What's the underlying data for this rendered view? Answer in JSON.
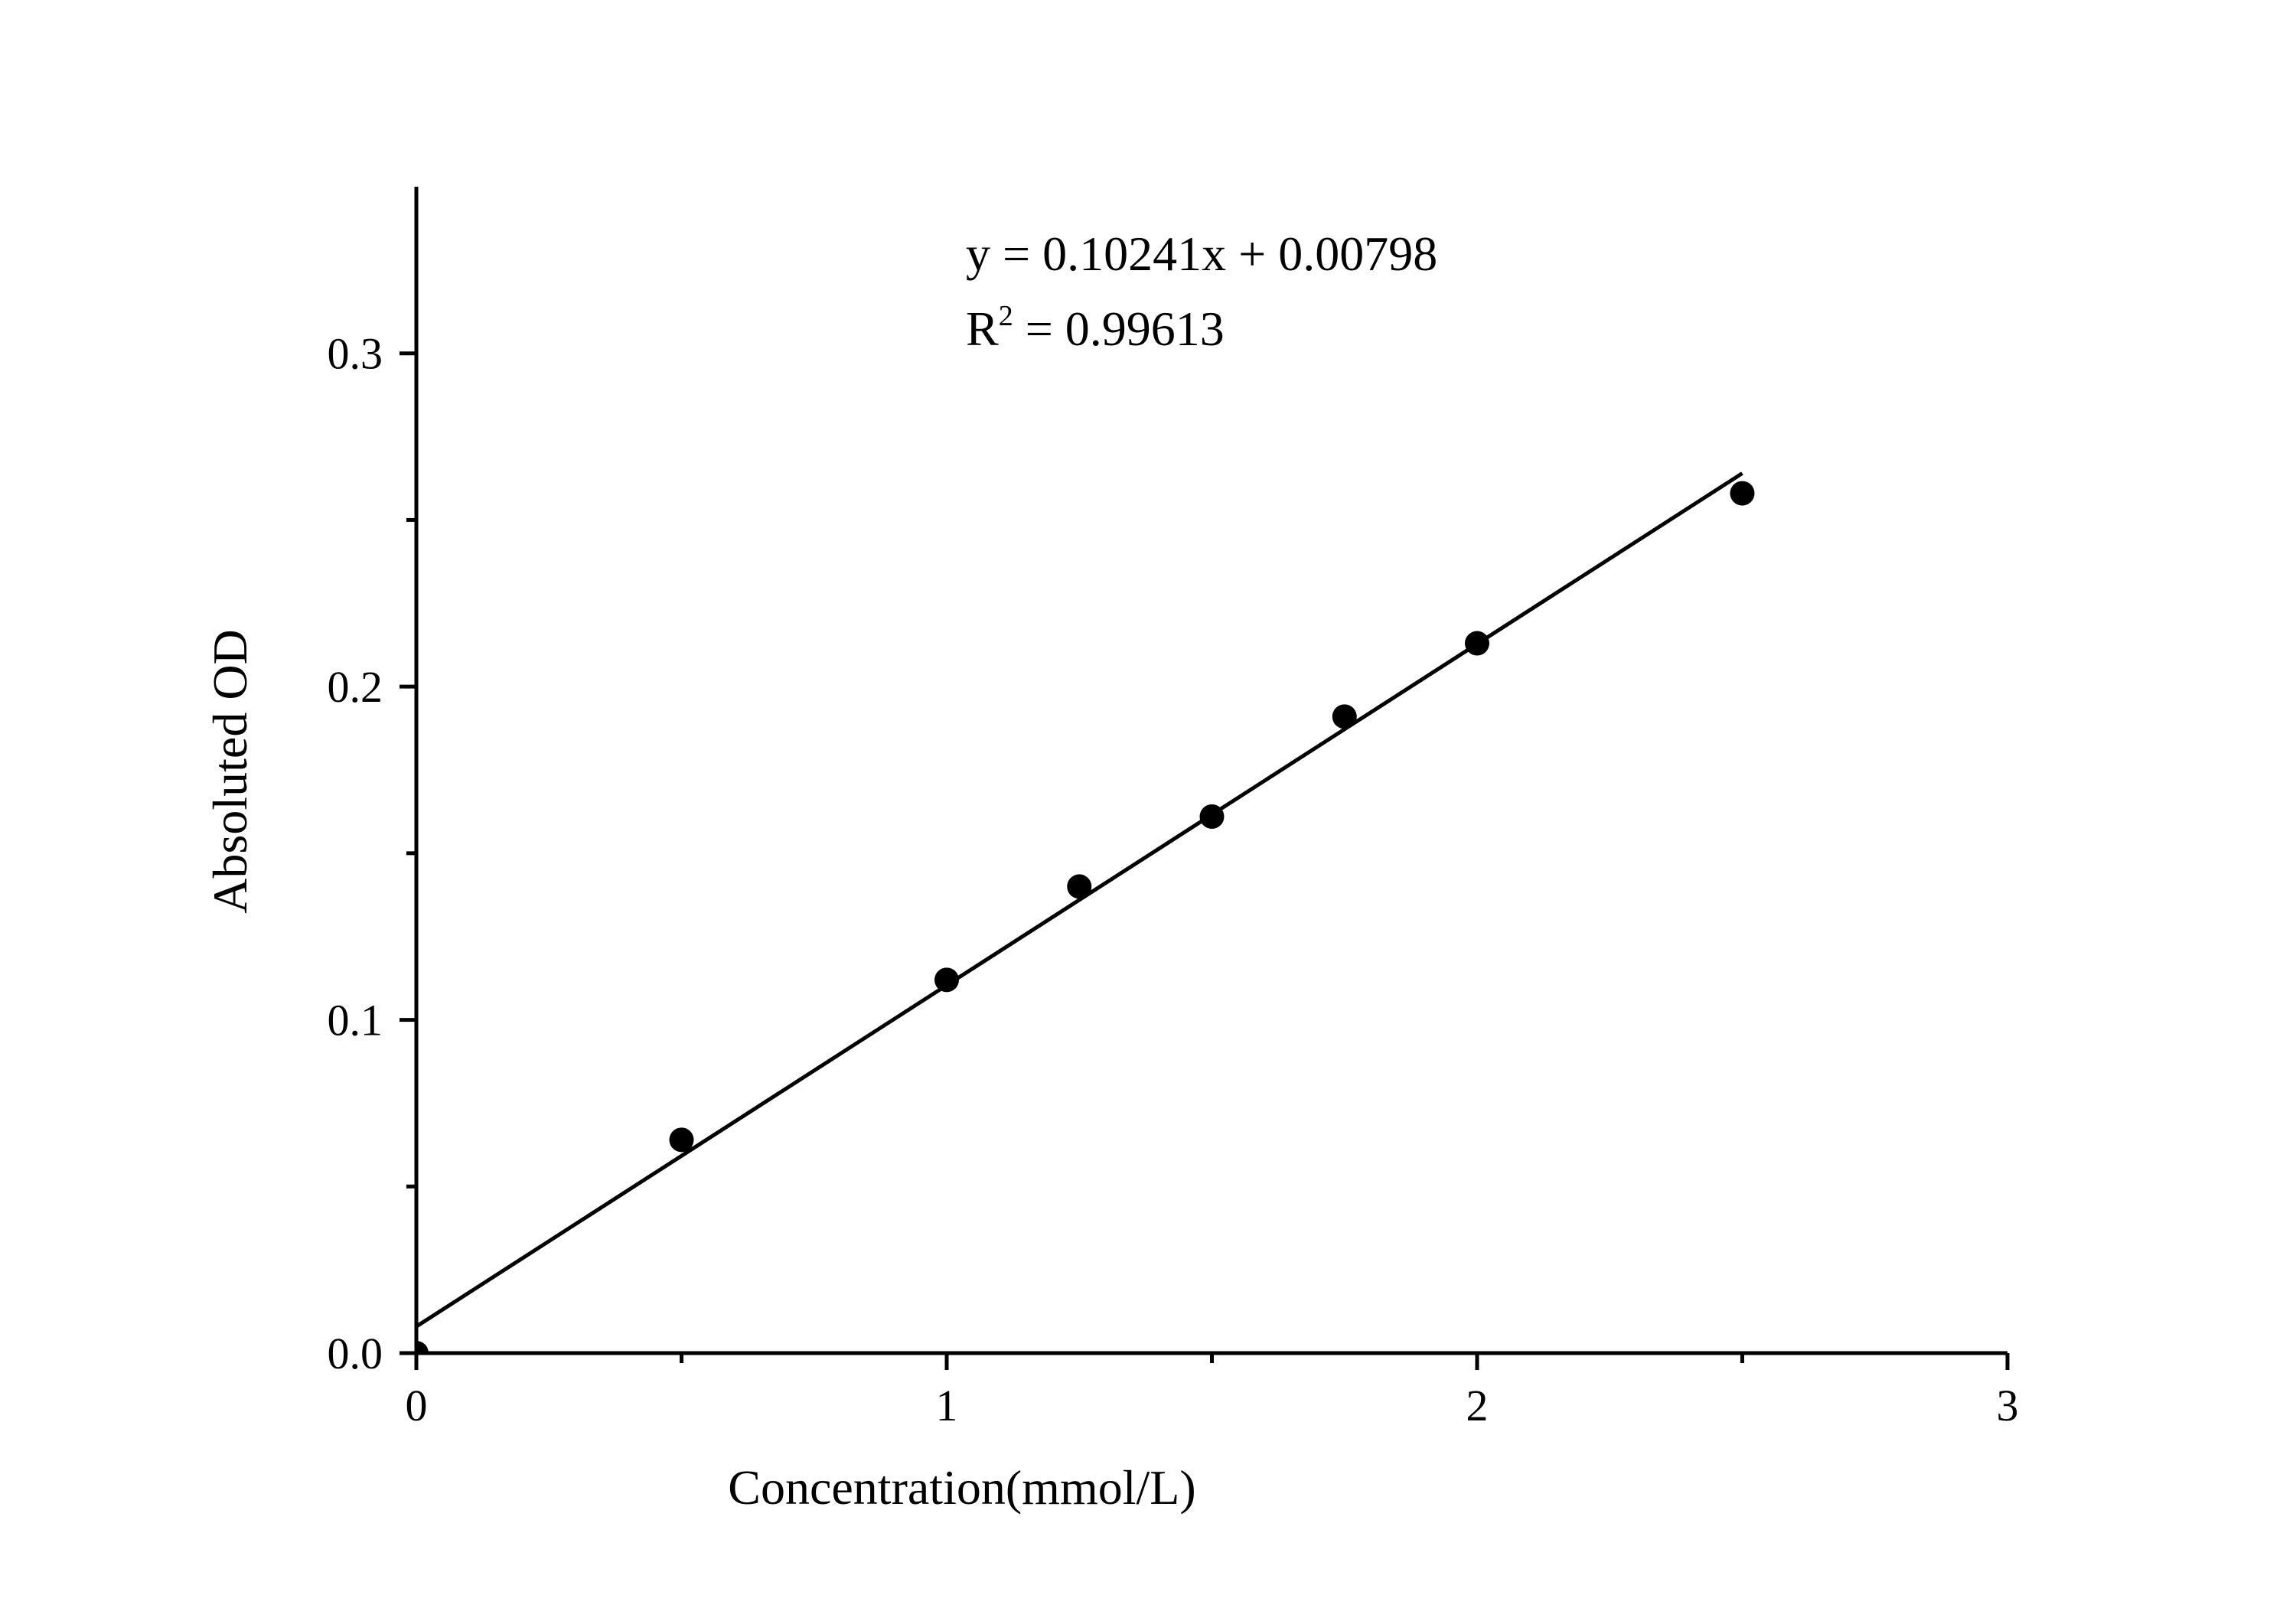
{
  "chart_data": {
    "type": "scatter",
    "title": "",
    "xlabel": "Concentration(mmol/L)",
    "ylabel": "Absoluted OD",
    "xlim": [
      0,
      3
    ],
    "ylim": [
      0,
      0.35
    ],
    "x_ticks": [
      "0",
      "1",
      "2",
      "3"
    ],
    "x_minor_ticks": [
      0.5,
      1.5,
      2.5
    ],
    "y_ticks": [
      "0.0",
      "0.1",
      "0.2",
      "0.3"
    ],
    "y_minor_ticks": [
      0.05,
      0.15,
      0.25
    ],
    "grid": false,
    "legend": "none",
    "series": [
      {
        "x": [
          0,
          0.5,
          1.0,
          1.25,
          1.5,
          1.75,
          2.0,
          2.5
        ],
        "y": [
          0.0,
          0.064,
          0.112,
          0.14,
          0.161,
          0.191,
          0.213,
          0.258
        ],
        "marker": "circle",
        "color": "#000000"
      }
    ],
    "fit_line": {
      "slope": 0.10241,
      "intercept": 0.00798,
      "x_range": [
        0,
        2.5
      ],
      "color": "#000000"
    },
    "annotations": {
      "equation": "y = 0.10241x + 0.00798",
      "r_symbol": "R",
      "r_exponent": "2",
      "r_value": " = 0.99613"
    }
  }
}
